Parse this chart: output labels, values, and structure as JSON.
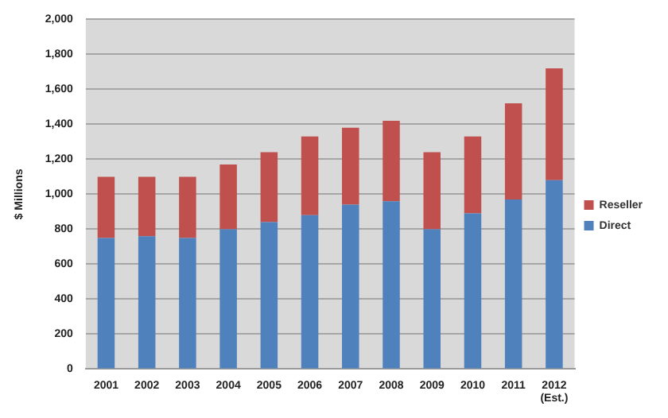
{
  "chart_data": {
    "type": "bar",
    "ylabel": "$ Millions",
    "stacked": true,
    "categories": [
      "2001",
      "2002",
      "2003",
      "2004",
      "2005",
      "2006",
      "2007",
      "2008",
      "2009",
      "2010",
      "2011",
      "2012\n(Est.)"
    ],
    "series": [
      {
        "name": "Direct",
        "color": "#4f81bd",
        "values": [
          750,
          760,
          750,
          800,
          840,
          880,
          940,
          960,
          800,
          890,
          970,
          1080
        ]
      },
      {
        "name": "Reseller",
        "color": "#c0504d",
        "values": [
          350,
          340,
          350,
          370,
          400,
          450,
          440,
          460,
          440,
          440,
          550,
          640
        ]
      }
    ],
    "ylim": [
      0,
      2000
    ],
    "yticks": [
      0,
      200,
      400,
      600,
      800,
      {
        "value": 1000,
        "label": "1,000"
      },
      {
        "value": 1200,
        "label": "1,200"
      },
      {
        "value": 1400,
        "label": "1,400"
      },
      {
        "value": 1600,
        "label": "1,600"
      },
      {
        "value": 1800,
        "label": "1,800"
      },
      {
        "value": 2000,
        "label": "2,000"
      }
    ],
    "grid": "y",
    "legend": "right"
  }
}
